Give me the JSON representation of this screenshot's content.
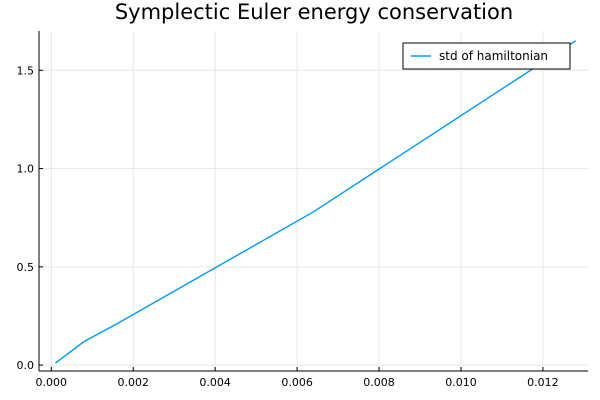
{
  "chart_data": {
    "type": "line",
    "title": "Symplectic Euler energy conservation",
    "xlabel": "",
    "ylabel": "",
    "xlim": [
      -0.0003,
      0.0131
    ],
    "ylim": [
      -0.03,
      1.7
    ],
    "xticks": [
      0.0,
      0.002,
      0.004,
      0.006,
      0.008,
      0.01,
      0.012
    ],
    "xtick_labels": [
      "0.000",
      "0.002",
      "0.004",
      "0.006",
      "0.008",
      "0.010",
      "0.012"
    ],
    "yticks": [
      0.0,
      0.5,
      1.0,
      1.5
    ],
    "ytick_labels": [
      "0.0",
      "0.5",
      "1.0",
      "1.5"
    ],
    "grid": true,
    "legend_position": "top-right",
    "series": [
      {
        "name": "std of hamiltonian",
        "color": "#009AFA",
        "x": [
          0.0001,
          0.0008,
          0.0016,
          0.0032,
          0.0064,
          0.0128
        ],
        "y": [
          0.01,
          0.12,
          0.21,
          0.4,
          0.78,
          1.65
        ]
      }
    ]
  }
}
